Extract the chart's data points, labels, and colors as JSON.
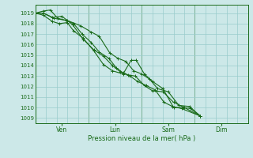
{
  "title": "",
  "xlabel": "Pression niveau de la mer( hPa )",
  "ylabel": "",
  "bg_color": "#cce8e8",
  "grid_color": "#99cccc",
  "line_color": "#1a6b1a",
  "marker_color": "#1a6b1a",
  "ylim": [
    1008.5,
    1019.8
  ],
  "yticks": [
    1009,
    1010,
    1011,
    1012,
    1013,
    1014,
    1015,
    1016,
    1017,
    1018,
    1019
  ],
  "xlim_days": [
    0,
    4.0
  ],
  "xtick_positions": [
    0.5,
    1.5,
    2.5,
    3.5
  ],
  "xtick_labels": [
    "Ven",
    "Lun",
    "Sam",
    "Dim"
  ],
  "vline_positions": [
    0.0,
    1.0,
    2.0,
    3.0,
    4.0
  ],
  "series": [
    [
      0.0,
      1019.0,
      0.15,
      1019.0,
      0.35,
      1018.5,
      0.6,
      1018.3,
      0.85,
      1017.8,
      1.05,
      1017.2,
      1.2,
      1016.8,
      1.4,
      1015.2,
      1.55,
      1014.7,
      1.7,
      1014.4,
      1.85,
      1013.5,
      2.0,
      1013.2,
      2.15,
      1012.7,
      2.3,
      1011.8,
      2.5,
      1011.5,
      2.7,
      1010.2,
      2.9,
      1010.1,
      3.1,
      1009.2
    ],
    [
      0.0,
      1019.0,
      0.15,
      1018.8,
      0.32,
      1018.2,
      0.45,
      1018.0,
      0.6,
      1018.1,
      0.72,
      1017.3,
      0.9,
      1016.6,
      1.1,
      1015.4,
      1.28,
      1014.1,
      1.45,
      1013.5,
      1.65,
      1013.2,
      1.8,
      1014.5,
      1.9,
      1014.5,
      2.05,
      1013.2,
      2.2,
      1012.5,
      2.4,
      1011.8,
      2.6,
      1010.0,
      2.78,
      1010.0,
      2.92,
      1009.9,
      3.1,
      1009.2
    ],
    [
      0.0,
      1019.0,
      0.15,
      1019.0,
      0.32,
      1018.6,
      0.5,
      1018.7,
      0.7,
      1017.9,
      0.9,
      1016.5,
      1.1,
      1015.5,
      1.28,
      1014.9,
      1.45,
      1014.0,
      1.6,
      1013.4,
      1.75,
      1013.1,
      1.88,
      1013.0,
      2.05,
      1012.1,
      2.2,
      1011.6,
      2.4,
      1011.5,
      2.6,
      1010.5,
      2.8,
      1010.0,
      3.1,
      1009.2
    ],
    [
      0.0,
      1019.0,
      0.15,
      1019.2,
      0.28,
      1019.3,
      0.42,
      1018.5,
      0.58,
      1018.3,
      0.72,
      1018.0,
      0.88,
      1017.0,
      1.05,
      1016.2,
      1.2,
      1015.3,
      1.38,
      1014.7,
      1.52,
      1013.8,
      1.65,
      1013.3,
      1.78,
      1013.0,
      1.92,
      1012.5,
      2.08,
      1012.1,
      2.25,
      1011.7,
      2.42,
      1010.5,
      2.58,
      1010.1,
      2.75,
      1009.9,
      3.1,
      1009.2
    ]
  ]
}
